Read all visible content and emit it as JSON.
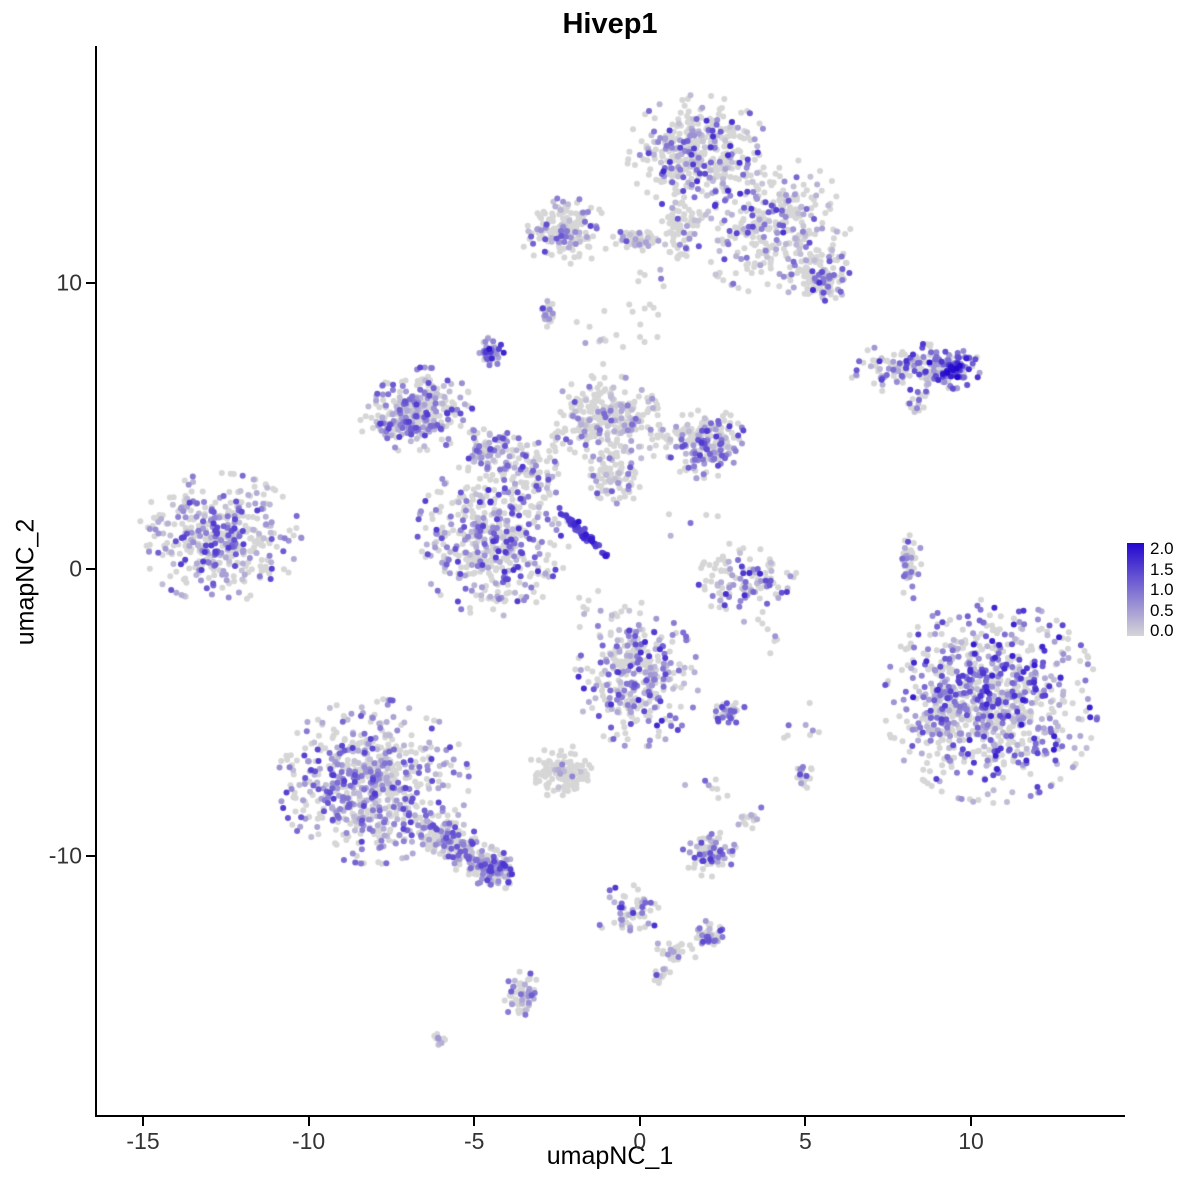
{
  "title": "Hivep1",
  "axes": {
    "x_label": "umapNC_1",
    "y_label": "umapNC_2",
    "x_ticks": [
      "-15",
      "-10",
      "-5",
      "0",
      "5",
      "10"
    ],
    "x_tick_values": [
      -15,
      -10,
      -5,
      0,
      5,
      10
    ],
    "y_ticks": [
      "10",
      "0",
      "-10"
    ],
    "y_tick_values": [
      10,
      0,
      -10
    ]
  },
  "legend": {
    "labels": [
      "2.0",
      "1.5",
      "1.0",
      "0.5",
      "0.0"
    ],
    "color_low": "#D6D6D6",
    "color_high": "#2307CF",
    "vmin": 0.0,
    "vmax": 2.0
  },
  "chart_data": {
    "type": "scatter",
    "title": "Hivep1",
    "xlabel": "umapNC_1",
    "ylabel": "umapNC_2",
    "xlim": [
      -16.45,
      14.65
    ],
    "ylim": [
      -19.1,
      18.25
    ],
    "grid": false,
    "legend_position": "right",
    "color_low": "#D6D6D6",
    "color_high": "#2307CF",
    "vmax": 2.0,
    "point_radius": 3,
    "seed": 42,
    "cluster_keys": [
      "center_x",
      "center_y",
      "sd_x",
      "sd_y",
      "n_points",
      "expressing_fraction",
      "value_min",
      "value_max",
      "rotation_deg"
    ],
    "clusters": [
      [
        1.7,
        14.5,
        0.9,
        0.85,
        400,
        0.35,
        0.15,
        1.7,
        0
      ],
      [
        3.9,
        12.0,
        1.0,
        1.0,
        330,
        0.3,
        0.15,
        1.6,
        0
      ],
      [
        5.4,
        10.2,
        0.4,
        0.35,
        120,
        0.35,
        0.2,
        1.7,
        0
      ],
      [
        1.2,
        11.9,
        0.27,
        0.45,
        80,
        0.25,
        0.15,
        1.3,
        0
      ],
      [
        -0.1,
        11.5,
        0.35,
        0.16,
        60,
        0.3,
        0.15,
        1.3,
        0
      ],
      [
        -2.3,
        11.8,
        0.6,
        0.48,
        160,
        0.3,
        0.15,
        1.4,
        0
      ],
      [
        0.2,
        9.6,
        0.25,
        0.9,
        15,
        0.2,
        0.15,
        1.0,
        0
      ],
      [
        -2.85,
        8.9,
        0.1,
        0.19,
        25,
        0.5,
        0.3,
        1.5,
        0
      ],
      [
        -4.6,
        7.6,
        0.18,
        0.22,
        45,
        0.85,
        0.5,
        1.9,
        0
      ],
      [
        8.2,
        7.0,
        0.9,
        0.36,
        150,
        0.5,
        0.2,
        1.6,
        0
      ],
      [
        9.4,
        7.0,
        0.34,
        0.3,
        90,
        0.85,
        0.6,
        2.0,
        0
      ],
      [
        8.3,
        5.7,
        0.14,
        0.21,
        15,
        0.3,
        0.15,
        1.2,
        0
      ],
      [
        -6.6,
        5.6,
        0.62,
        0.6,
        260,
        0.45,
        0.2,
        1.5,
        0
      ],
      [
        -7.3,
        5.1,
        0.5,
        0.4,
        80,
        0.5,
        0.2,
        1.5,
        0
      ],
      [
        -4.6,
        4.2,
        0.34,
        0.35,
        90,
        0.5,
        0.2,
        1.5,
        0
      ],
      [
        -1.1,
        5.3,
        0.68,
        0.62,
        260,
        0.25,
        0.15,
        1.3,
        0
      ],
      [
        -0.75,
        3.3,
        0.37,
        0.42,
        90,
        0.3,
        0.15,
        1.3,
        0
      ],
      [
        1.9,
        4.4,
        0.52,
        0.52,
        200,
        0.35,
        0.2,
        1.5,
        0
      ],
      [
        0.5,
        4.5,
        0.3,
        0.3,
        20,
        0.25,
        0.15,
        1.0,
        0
      ],
      [
        -4.5,
        1.1,
        0.96,
        1.14,
        480,
        0.45,
        0.2,
        1.6,
        0
      ],
      [
        -3.3,
        3.5,
        0.48,
        0.59,
        90,
        0.3,
        0.15,
        1.3,
        0
      ],
      [
        -1.87,
        1.4,
        0.52,
        0.06,
        65,
        1.0,
        1.2,
        2.0,
        -49
      ],
      [
        -12.75,
        1.1,
        1.03,
        0.94,
        430,
        0.45,
        0.2,
        1.5,
        0
      ],
      [
        8.1,
        0.25,
        0.14,
        0.55,
        45,
        0.4,
        0.2,
        1.3,
        0
      ],
      [
        3.2,
        -0.4,
        0.62,
        0.58,
        120,
        0.4,
        0.2,
        1.8,
        0
      ],
      [
        10.55,
        -4.6,
        1.35,
        1.48,
        850,
        0.55,
        0.25,
        1.8,
        0
      ],
      [
        8.9,
        -5.0,
        0.32,
        0.7,
        70,
        0.3,
        0.15,
        1.2,
        0
      ],
      [
        -0.15,
        -3.8,
        0.78,
        1.0,
        320,
        0.5,
        0.25,
        1.7,
        0
      ],
      [
        2.65,
        -5.0,
        0.2,
        0.23,
        40,
        0.5,
        0.3,
        1.5,
        0
      ],
      [
        -2.4,
        -7.05,
        0.44,
        0.38,
        110,
        0.12,
        0.15,
        1.0,
        0
      ],
      [
        4.9,
        -7.2,
        0.15,
        0.23,
        22,
        0.4,
        0.2,
        1.3,
        0
      ],
      [
        -8.1,
        -7.4,
        1.2,
        1.2,
        650,
        0.5,
        0.2,
        1.5,
        0
      ],
      [
        -5.65,
        -9.6,
        0.9,
        0.3,
        220,
        0.5,
        0.2,
        1.5,
        -38
      ],
      [
        -4.45,
        -10.5,
        0.27,
        0.3,
        110,
        0.6,
        0.3,
        1.6,
        0
      ],
      [
        2.05,
        -9.9,
        0.34,
        0.34,
        85,
        0.45,
        0.25,
        1.5,
        0
      ],
      [
        3.35,
        -8.7,
        0.2,
        0.2,
        14,
        0.3,
        0.2,
        1.2,
        0
      ],
      [
        -0.35,
        -11.95,
        0.44,
        0.39,
        55,
        0.5,
        0.3,
        1.6,
        0
      ],
      [
        2.05,
        -12.8,
        0.2,
        0.23,
        42,
        0.55,
        0.3,
        1.6,
        0
      ],
      [
        0.95,
        -13.35,
        0.3,
        0.2,
        28,
        0.3,
        0.2,
        1.2,
        0
      ],
      [
        0.55,
        -14.2,
        0.14,
        0.14,
        16,
        0.4,
        0.2,
        1.3,
        0
      ],
      [
        -3.6,
        -14.9,
        0.23,
        0.37,
        55,
        0.5,
        0.25,
        1.5,
        0
      ],
      [
        -6.1,
        -16.4,
        0.17,
        0.12,
        12,
        0.4,
        0.2,
        1.2,
        0
      ],
      [
        -0.9,
        -1.6,
        0.5,
        0.45,
        18,
        0.3,
        0.15,
        1.2,
        0
      ],
      [
        3.6,
        -2.2,
        0.5,
        0.5,
        8,
        0.3,
        0.15,
        1.2,
        0
      ],
      [
        5.1,
        -5.6,
        0.35,
        0.4,
        8,
        0.3,
        0.15,
        1.2,
        0
      ],
      [
        -1.1,
        8.3,
        0.5,
        0.5,
        12,
        0.2,
        0.15,
        1.0,
        0
      ],
      [
        1.4,
        1.5,
        0.4,
        0.4,
        5,
        0.2,
        0.15,
        1.0,
        0
      ],
      [
        2.2,
        -7.6,
        0.55,
        0.4,
        8,
        0.3,
        0.15,
        1.2,
        0
      ]
    ]
  }
}
